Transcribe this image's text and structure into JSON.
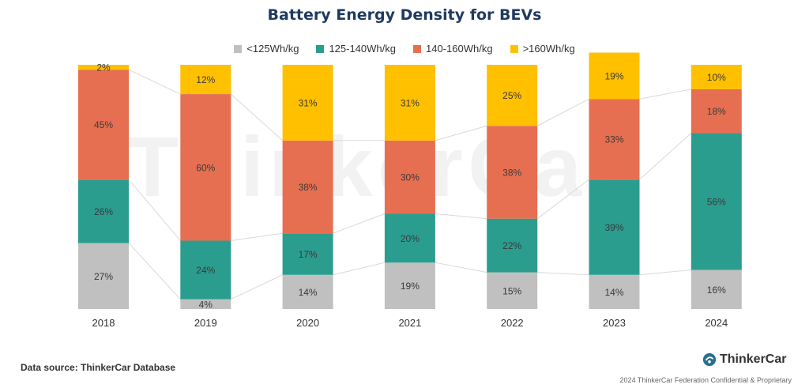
{
  "chart_data": {
    "type": "bar",
    "stacked": true,
    "title": "Battery Energy Density for BEVs",
    "categories": [
      "2018",
      "2019",
      "2020",
      "2021",
      "2022",
      "2023",
      "2024"
    ],
    "series": [
      {
        "name": "<125Wh/kg",
        "color": "#c0c0c0",
        "values": [
          27,
          4,
          14,
          19,
          15,
          14,
          16
        ]
      },
      {
        "name": "125-140Wh/kg",
        "color": "#2a9d8f",
        "values": [
          26,
          24,
          17,
          20,
          22,
          39,
          56
        ]
      },
      {
        "name": "140-160Wh/kg",
        "color": "#e76f51",
        "values": [
          45,
          60,
          38,
          30,
          38,
          33,
          18
        ]
      },
      {
        "name": ">160Wh/kg",
        "color": "#ffc000",
        "values": [
          2,
          12,
          31,
          31,
          25,
          19,
          10
        ]
      }
    ],
    "value_suffix": "%",
    "legend_position": "top",
    "grid": false,
    "ylim": [
      0,
      100
    ]
  },
  "watermark": "ThinkerCar",
  "footer": {
    "source": "Data source: ThinkerCar Database",
    "brand": "ThinkerCar",
    "confidential": "2024 ThinkerCar Federation Confidential & Proprietary"
  }
}
